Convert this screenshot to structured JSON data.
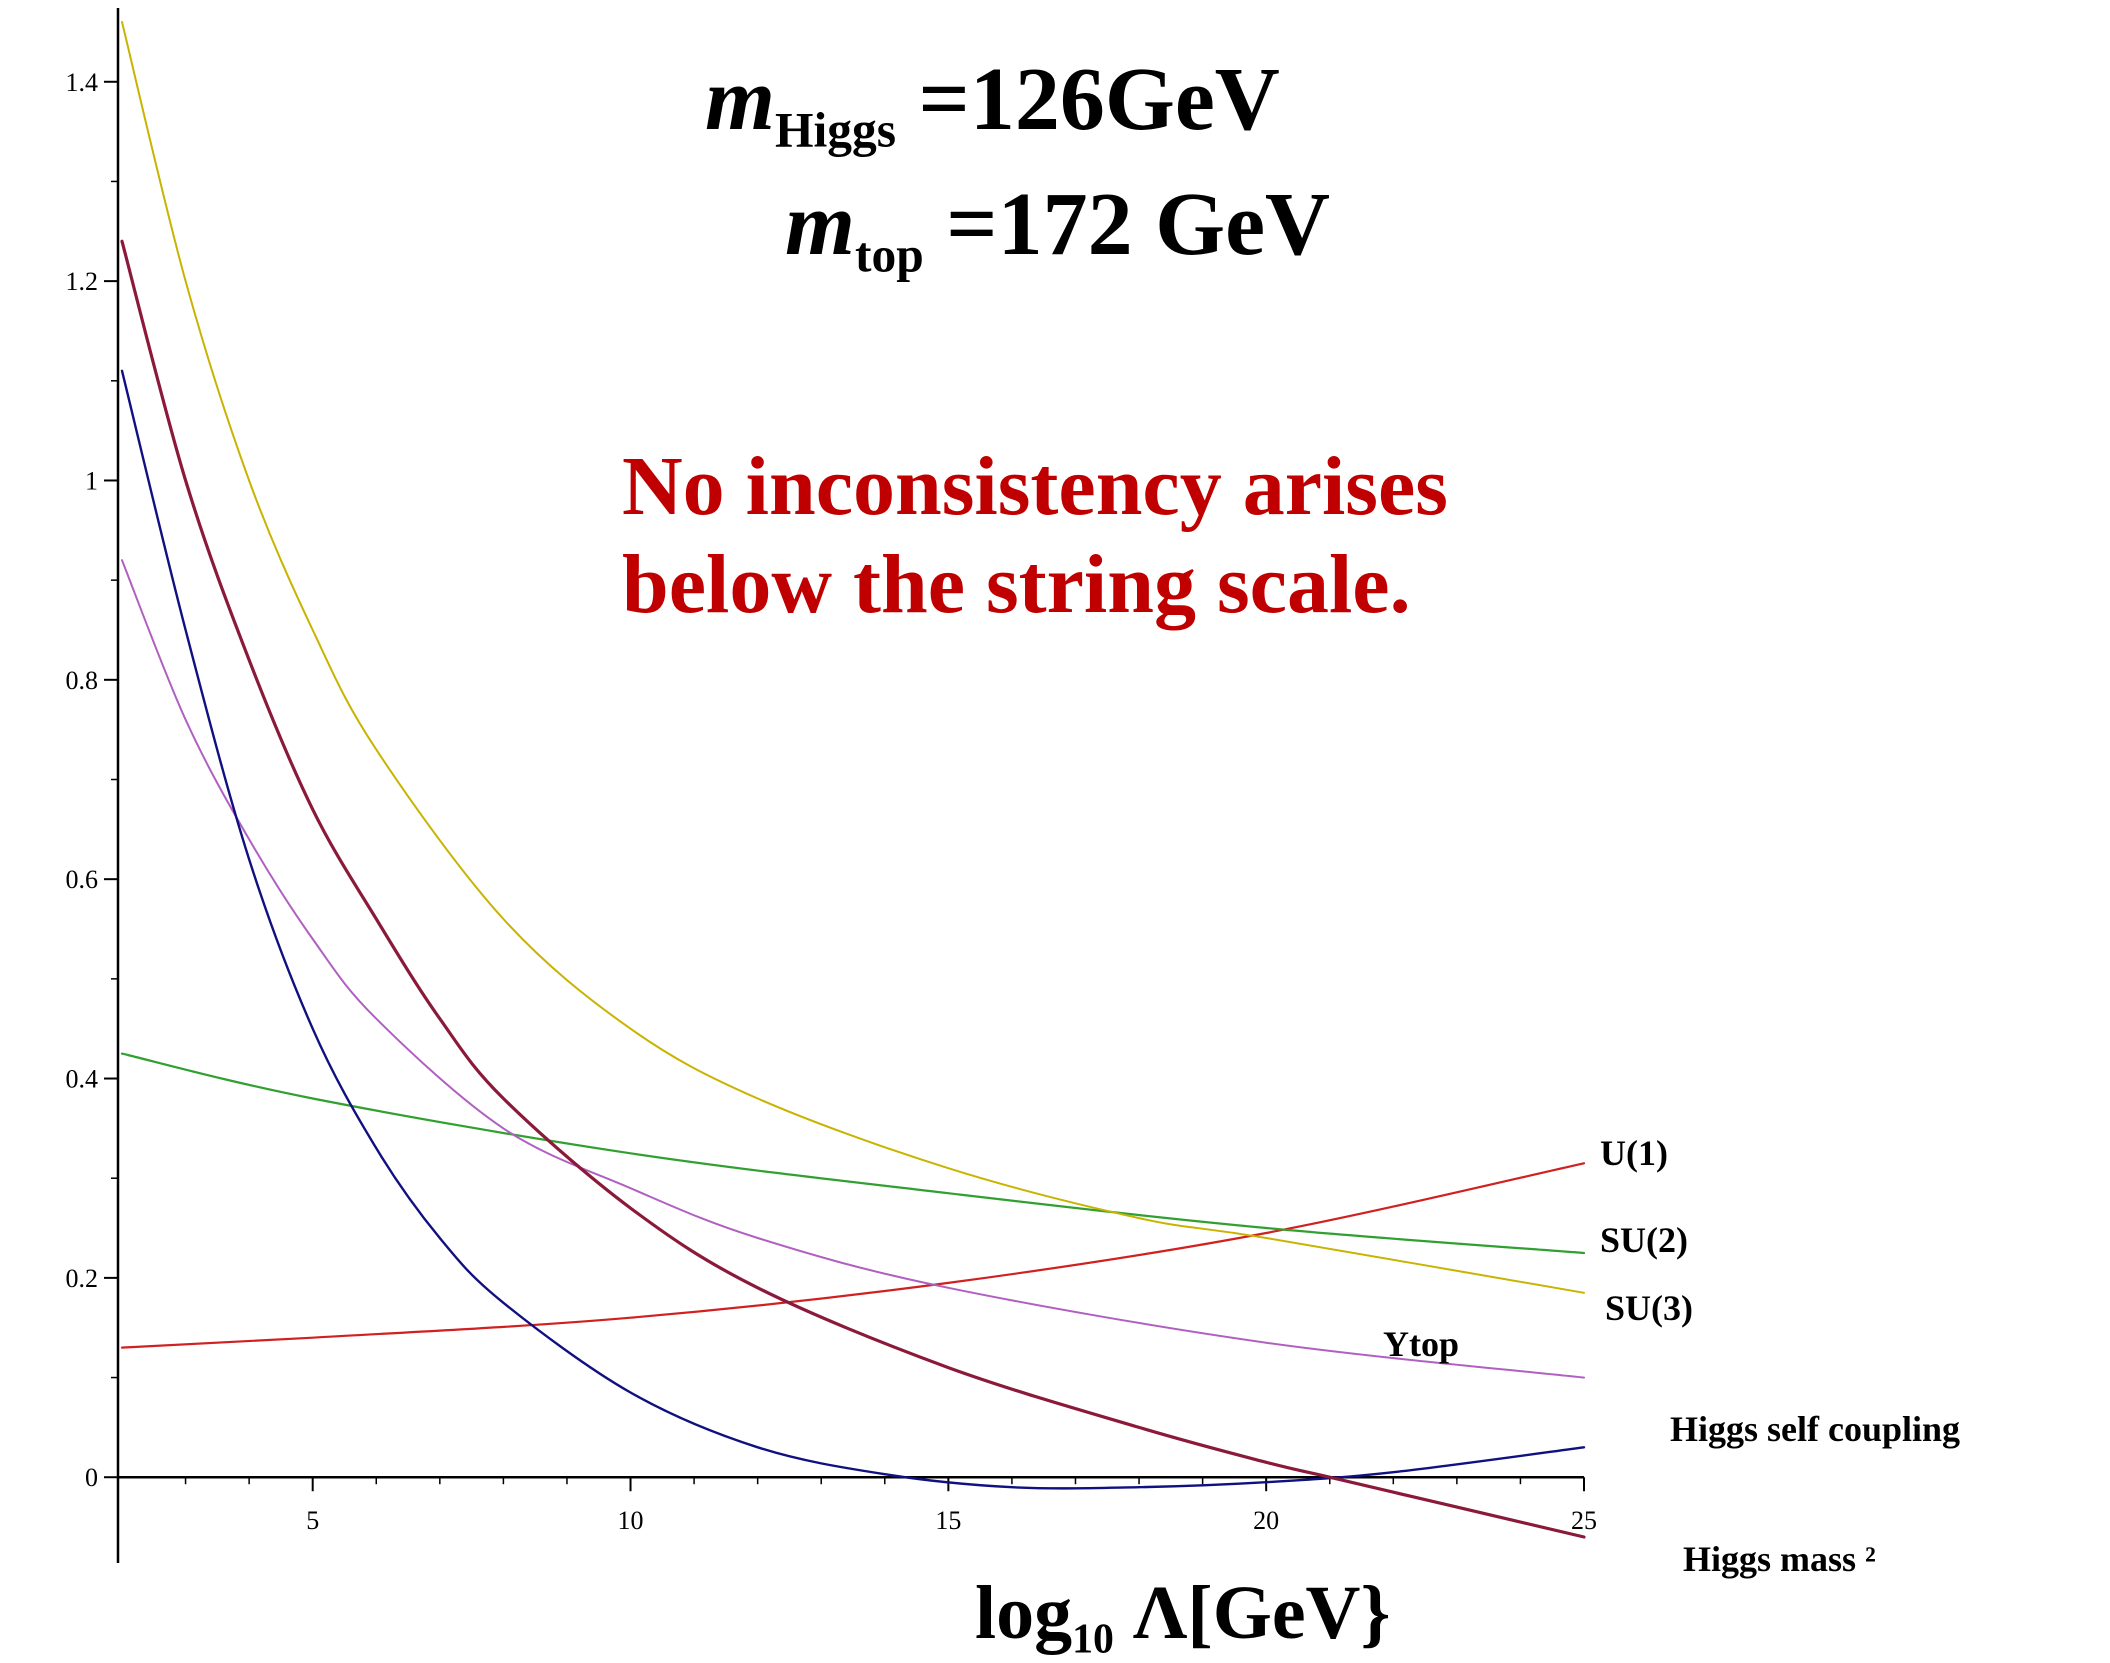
{
  "header": {
    "higgs_symbol": "m",
    "higgs_sub": "Higgs",
    "higgs_value": " =126GeV",
    "top_symbol": "m",
    "top_sub": "top",
    "top_value": " =172 GeV"
  },
  "message": {
    "line1": "No inconsistency arises",
    "line2": "below the string scale."
  },
  "xlabel": {
    "prefix": "log",
    "sub": "10",
    "suffix": " Λ[GeV}"
  },
  "colors": {
    "axis": "#000000",
    "message": "#c00000"
  },
  "chart_data": {
    "type": "line",
    "xlim": [
      2,
      25
    ],
    "ylim": [
      -0.07,
      1.47
    ],
    "x_ticks": [
      5,
      10,
      15,
      20,
      25
    ],
    "x_tick_labels": [
      "5",
      "10",
      "15",
      "20",
      "25"
    ],
    "y_ticks": [
      0,
      0.2,
      0.4,
      0.6,
      0.8,
      1,
      1.2,
      1.4
    ],
    "y_tick_labels": [
      "0",
      "0.2",
      "0.4",
      "0.6",
      "0.8",
      "1",
      "1.2",
      "1.4"
    ],
    "grid": false,
    "series": [
      {
        "name": "U(1)",
        "color": "#d02020",
        "x": [
          2,
          5,
          10,
          15,
          20,
          25
        ],
        "y": [
          0.13,
          0.14,
          0.16,
          0.195,
          0.245,
          0.315
        ]
      },
      {
        "name": "SU(2)",
        "color": "#30a030",
        "x": [
          2,
          5,
          10,
          15,
          20,
          25
        ],
        "y": [
          0.425,
          0.38,
          0.325,
          0.285,
          0.25,
          0.225
        ]
      },
      {
        "name": "SU(3)",
        "color": "#c8b400",
        "x": [
          2,
          3,
          4,
          5,
          6,
          8,
          10,
          12,
          15,
          18,
          20,
          25
        ],
        "y": [
          1.46,
          1.2,
          1.0,
          0.85,
          0.73,
          0.56,
          0.45,
          0.38,
          0.31,
          0.26,
          0.24,
          0.185
        ]
      },
      {
        "name": "Ytop",
        "color": "#b060c0",
        "x": [
          2,
          3,
          4,
          5,
          6,
          8,
          10,
          12,
          15,
          20,
          25
        ],
        "y": [
          0.92,
          0.76,
          0.64,
          0.54,
          0.46,
          0.35,
          0.29,
          0.24,
          0.19,
          0.135,
          0.1
        ]
      },
      {
        "name": "Higgs self coupling",
        "color": "#101080",
        "x": [
          2,
          3,
          4,
          5,
          6,
          7,
          8,
          10,
          12,
          14,
          16,
          18,
          20,
          22,
          25
        ],
        "y": [
          1.11,
          0.85,
          0.62,
          0.45,
          0.33,
          0.24,
          0.175,
          0.085,
          0.03,
          0.003,
          -0.01,
          -0.01,
          -0.005,
          0.005,
          0.03
        ]
      },
      {
        "name": "Higgs mass ²",
        "color": "#8b1a3a",
        "x": [
          2,
          3,
          4,
          5,
          6,
          7,
          8,
          10,
          12,
          15,
          18,
          20,
          21,
          23,
          25
        ],
        "y": [
          1.24,
          1.0,
          0.82,
          0.67,
          0.56,
          0.46,
          0.38,
          0.27,
          0.19,
          0.11,
          0.05,
          0.015,
          0.0,
          -0.03,
          -0.06
        ]
      }
    ]
  }
}
